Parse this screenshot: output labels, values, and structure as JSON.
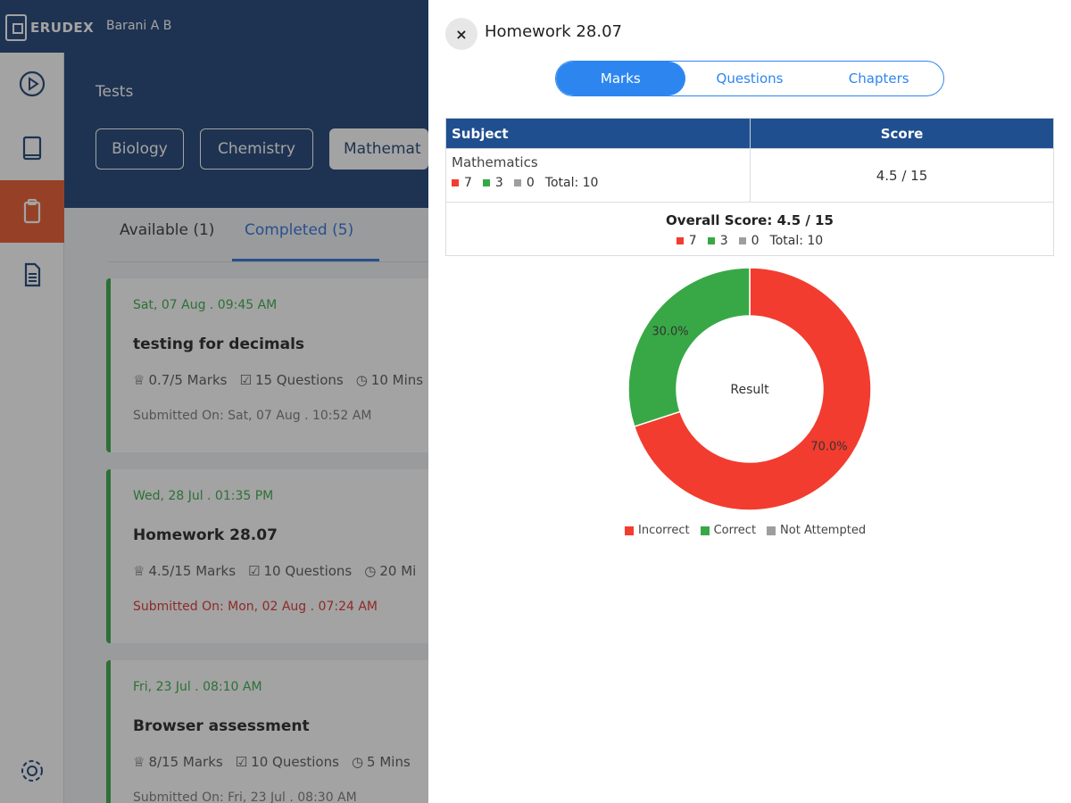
{
  "app": {
    "logo_text": "ERUDEX",
    "user": "Barani A B"
  },
  "header": {
    "section_title": "Tests",
    "subjects": [
      "Biology",
      "Chemistry",
      "Mathemat"
    ]
  },
  "tabs": {
    "available": "Available (1)",
    "completed": "Completed (5)"
  },
  "cards": [
    {
      "date": "Sat, 07 Aug . 09:45 AM",
      "title": "testing for decimals",
      "marks": "0.7/5 Marks",
      "questions": "15 Questions",
      "time": "10 Mins",
      "submitted": "Submitted On: Sat, 07 Aug . 10:52 AM",
      "late": false
    },
    {
      "date": "Wed, 28 Jul . 01:35 PM",
      "title": "Homework 28.07",
      "marks": "4.5/15 Marks",
      "questions": "10 Questions",
      "time": "20 Mi",
      "submitted": "Submitted On: Mon, 02 Aug . 07:24 AM",
      "late": true
    },
    {
      "date": "Fri, 23 Jul . 08:10 AM",
      "title": "Browser assessment",
      "marks": "8/15 Marks",
      "questions": "10 Questions",
      "time": "5 Mins",
      "submitted": "Submitted On: Fri, 23 Jul . 08:30 AM",
      "late": false
    }
  ],
  "panel": {
    "title": "Homework 28.07",
    "close_label": "×",
    "segments": [
      "Marks",
      "Questions",
      "Chapters"
    ],
    "table": {
      "headers": {
        "subject": "Subject",
        "score": "Score"
      },
      "rows": [
        {
          "subject": "Mathematics",
          "incorrect": "7",
          "correct": "3",
          "not_attempted": "0",
          "total": "Total: 10",
          "score": "4.5 / 15"
        }
      ],
      "overall": {
        "title": "Overall Score: 4.5 / 15",
        "incorrect": "7",
        "correct": "3",
        "not_attempted": "0",
        "total": "Total: 10"
      }
    }
  },
  "chart_data": {
    "type": "pie",
    "center_label": "Result",
    "categories": [
      "Incorrect",
      "Correct",
      "Not Attempted"
    ],
    "values": [
      70.0,
      30.0,
      0.0
    ],
    "value_labels": [
      "70.0%",
      "30.0%",
      ""
    ],
    "colors": [
      "#f23c2f",
      "#38a846",
      "#9e9e9e"
    ],
    "legend_position": "bottom"
  }
}
